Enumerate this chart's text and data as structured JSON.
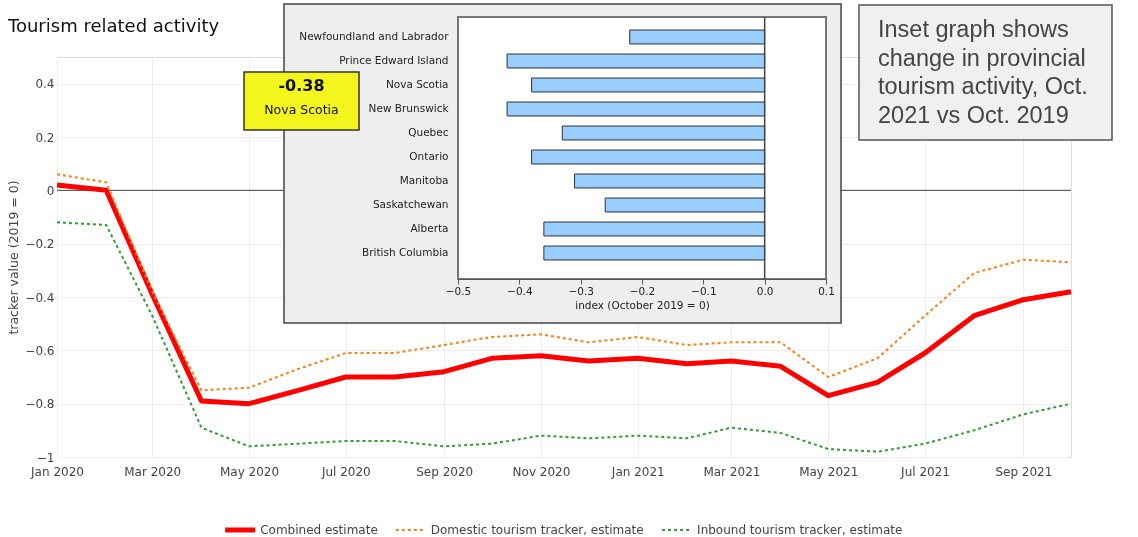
{
  "chart_data": [
    {
      "type": "line",
      "title": "Tourism related activity",
      "ylabel": "tracker value (2019 = 0)",
      "x": [
        "2020-01",
        "2020-02",
        "2020-03",
        "2020-04",
        "2020-05",
        "2020-06",
        "2020-07",
        "2020-08",
        "2020-09",
        "2020-10",
        "2020-11",
        "2020-12",
        "2021-01",
        "2021-02",
        "2021-03",
        "2021-04",
        "2021-05",
        "2021-06",
        "2021-07",
        "2021-08",
        "2021-09",
        "2021-10"
      ],
      "xlim": [
        "2020-01",
        "2021-10"
      ],
      "xticks": [
        {
          "value": "2020-01",
          "label": "Jan 2020"
        },
        {
          "value": "2020-03",
          "label": "Mar 2020"
        },
        {
          "value": "2020-05",
          "label": "May 2020"
        },
        {
          "value": "2020-07",
          "label": "Jul 2020"
        },
        {
          "value": "2020-09",
          "label": "Sep 2020"
        },
        {
          "value": "2020-11",
          "label": "Nov 2020"
        },
        {
          "value": "2021-01",
          "label": "Jan 2021"
        },
        {
          "value": "2021-03",
          "label": "Mar 2021"
        },
        {
          "value": "2021-05",
          "label": "May 2021"
        },
        {
          "value": "2021-07",
          "label": "Jul 2021"
        },
        {
          "value": "2021-09",
          "label": "Sep 2021"
        }
      ],
      "ylim": [
        -1,
        0.5
      ],
      "yticks": [
        -1,
        -0.8,
        -0.6,
        -0.4,
        -0.2,
        0,
        0.2,
        0.4
      ],
      "grid": true,
      "legend": "bottom",
      "ref_lines": [
        {
          "axis": "y",
          "value": 0,
          "color": "#444444"
        }
      ],
      "series": [
        {
          "name": "Combined estimate",
          "color": "#ff0000",
          "line_style": "solid",
          "values": [
            0.02,
            0.0,
            -0.39,
            -0.79,
            -0.8,
            -0.75,
            -0.7,
            -0.7,
            -0.68,
            -0.63,
            -0.62,
            -0.64,
            -0.63,
            -0.65,
            -0.64,
            -0.66,
            -0.77,
            -0.72,
            -0.61,
            -0.47,
            -0.41,
            -0.38
          ]
        },
        {
          "name": "Domestic tourism tracker, estimate",
          "color": "#ff7f0e",
          "line_style": "dotted",
          "values": [
            0.06,
            0.03,
            -0.38,
            -0.75,
            -0.74,
            -0.67,
            -0.61,
            -0.61,
            -0.58,
            -0.55,
            -0.54,
            -0.57,
            -0.55,
            -0.58,
            -0.57,
            -0.57,
            -0.7,
            -0.63,
            -0.47,
            -0.31,
            -0.26,
            -0.27
          ]
        },
        {
          "name": "Inbound tourism tracker, estimate",
          "color": "#2ca02c",
          "line_style": "dotted",
          "values": [
            -0.12,
            -0.13,
            -0.47,
            -0.89,
            -0.96,
            -0.95,
            -0.94,
            -0.94,
            -0.96,
            -0.95,
            -0.92,
            -0.93,
            -0.92,
            -0.93,
            -0.89,
            -0.91,
            -0.97,
            -0.98,
            -0.95,
            -0.9,
            -0.84,
            -0.8
          ]
        }
      ]
    },
    {
      "type": "bar",
      "orientation": "horizontal",
      "xlabel": "index (October 2019 = 0)",
      "categories": [
        "Newfoundland and Labrador",
        "Prince Edward Island",
        "Nova Scotia",
        "New Brunswick",
        "Quebec",
        "Ontario",
        "Manitoba",
        "Saskatchewan",
        "Alberta",
        "British Columbia"
      ],
      "values": [
        -0.22,
        -0.42,
        -0.38,
        -0.42,
        -0.33,
        -0.38,
        -0.31,
        -0.26,
        -0.36,
        -0.36
      ],
      "color": "#99ccff",
      "xlim": [
        -0.5,
        0.1
      ],
      "xticks": [
        -0.5,
        -0.4,
        -0.3,
        -0.2,
        -0.1,
        {
          "value": 0,
          "label": "0.0"
        },
        0.1
      ],
      "ref_lines": [
        {
          "axis": "x",
          "value": 0,
          "color": "#444444"
        }
      ],
      "annotations": [
        "-0.38\nNova Scotia"
      ]
    },
    {
      "type": "other",
      "annotations": [
        "Inset graph shows change in provincial tourism activity, Oct. 2021 vs Oct. 2019"
      ]
    }
  ]
}
